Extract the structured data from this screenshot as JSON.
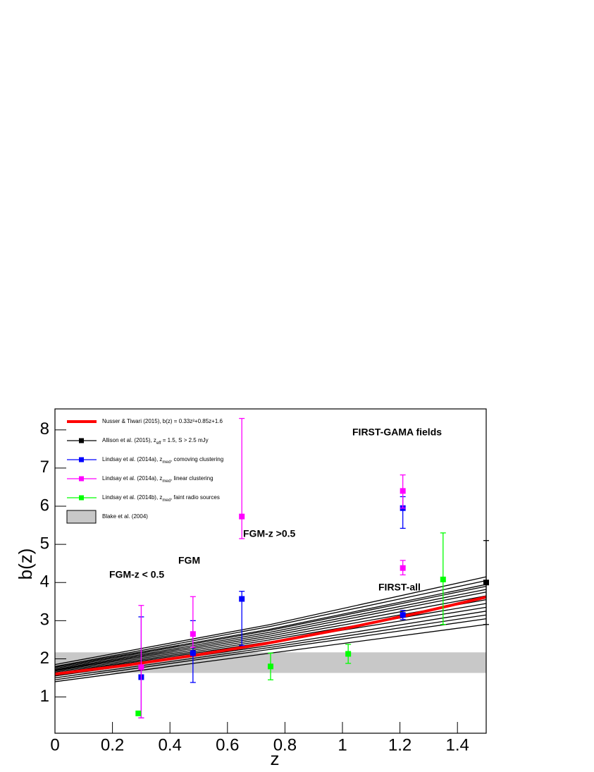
{
  "chart_data": {
    "type": "errorbar",
    "xlabel": "z",
    "ylabel": "b(z)",
    "xlim": [
      0,
      1.5
    ],
    "ylim": [
      0.05,
      8.55
    ],
    "xticks": [
      0,
      0.2,
      0.4,
      0.6,
      0.8,
      1,
      1.2,
      1.4
    ],
    "yticks": [
      1,
      2,
      3,
      4,
      5,
      6,
      7,
      8
    ],
    "model": {
      "name": [
        "Nusser & Tiwari (2015), b(z) = 0.33z²+0.85z+1.6"
      ],
      "color": "#ff0000",
      "x": [
        0,
        0.25,
        0.5,
        0.75,
        1,
        1.25,
        1.5
      ],
      "values": [
        1.6,
        1.833,
        2.1075,
        2.423,
        2.78,
        3.178,
        3.6175
      ]
    },
    "curve_x": [
      0,
      0.75,
      1.5
    ],
    "curves": [
      {
        "color": "#000000",
        "values": [
          1.4,
          2.15,
          2.9
        ]
      },
      {
        "color": "#000000",
        "values": [
          1.45,
          2.25,
          3.05
        ]
      },
      {
        "color": "#000000",
        "values": [
          1.5,
          2.3,
          3.15
        ]
      },
      {
        "color": "#000000",
        "values": [
          1.55,
          2.35,
          3.25
        ]
      },
      {
        "color": "#000000",
        "values": [
          1.6,
          2.45,
          3.35
        ]
      },
      {
        "color": "#000000",
        "values": [
          1.62,
          2.5,
          3.45
        ]
      },
      {
        "color": "#000000",
        "values": [
          1.65,
          2.55,
          3.55
        ]
      },
      {
        "color": "#000000",
        "values": [
          1.68,
          2.6,
          3.65
        ]
      },
      {
        "color": "#000000",
        "values": [
          1.7,
          2.65,
          3.75
        ]
      },
      {
        "color": "#000000",
        "values": [
          1.72,
          2.7,
          3.82
        ]
      },
      {
        "color": "#000000",
        "values": [
          1.75,
          2.75,
          3.9
        ]
      },
      {
        "color": "#000000",
        "values": [
          1.78,
          2.78,
          3.95
        ]
      },
      {
        "color": "#000000",
        "values": [
          1.8,
          2.85,
          4.05
        ]
      },
      {
        "color": "#000000",
        "values": [
          1.85,
          2.9,
          4.15
        ]
      }
    ],
    "series": [
      {
        "name": [
          "Allison et al. (2015), z",
          "eff",
          " = 1.5, S > 2.5 mJy"
        ],
        "color": "#000000",
        "x": [
          1.5
        ],
        "values": [
          4.0
        ],
        "err_minus": [
          1.1
        ],
        "err_plus": [
          1.1
        ]
      },
      {
        "name": [
          "Lindsay et al. (2014a), z",
          "med",
          ", comoving clustering"
        ],
        "color": "#0000ff",
        "x": [
          0.3,
          0.48,
          0.65,
          1.21,
          1.21
        ],
        "values": [
          1.52,
          2.15,
          3.57,
          5.95,
          3.15
        ],
        "err_minus": [
          1.07,
          0.77,
          1.22,
          0.53,
          0.12
        ],
        "err_plus": [
          1.58,
          0.85,
          0.2,
          0.3,
          0.12
        ]
      },
      {
        "name": [
          "Lindsay et al. (2014a), z",
          "med",
          ", linear clustering"
        ],
        "color": "#ff00ff",
        "x": [
          0.3,
          0.48,
          0.65,
          1.21,
          1.21
        ],
        "values": [
          1.78,
          2.65,
          5.73,
          6.4,
          4.38
        ],
        "err_minus": [
          1.33,
          0.35,
          0.58,
          0.45,
          0.18
        ],
        "err_plus": [
          1.62,
          0.98,
          2.57,
          0.42,
          0.2
        ]
      },
      {
        "name": [
          "Lindsay et al. (2014b), z",
          "med",
          ", faint radio sources"
        ],
        "color": "#00ff00",
        "x": [
          0.29,
          0.75,
          1.02,
          1.35
        ],
        "values": [
          0.57,
          1.8,
          2.13,
          4.08
        ],
        "err_minus": [
          0,
          0.35,
          0.25,
          1.18
        ],
        "err_plus": [
          0,
          0.35,
          0.25,
          1.22
        ]
      }
    ],
    "band": {
      "name": [
        "Blake et al. (2004)"
      ],
      "color": "#c8c8c8",
      "x": [
        0,
        1.5
      ],
      "low": 1.63,
      "high": 2.17
    },
    "annotations": [
      "FGM-z < 0.5",
      "FGM",
      "FGM-z >0.5",
      "FIRST-GAMA fields",
      "FIRST-all"
    ]
  }
}
